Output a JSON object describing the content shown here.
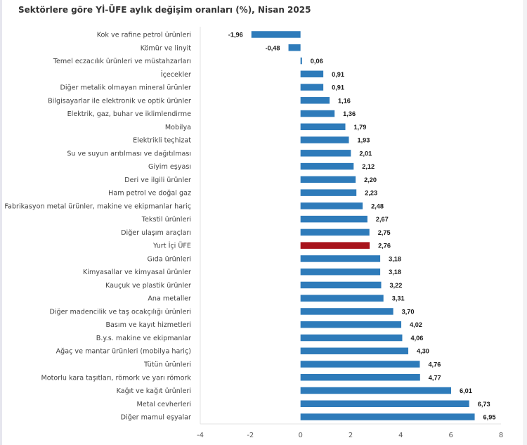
{
  "chart_data": {
    "type": "bar",
    "orientation": "horizontal",
    "title": "Sektörlere göre Yİ-ÜFE aylık değişim oranları (%), Nisan 2025",
    "xlabel": "",
    "ylabel": "",
    "xlim": [
      -4,
      8
    ],
    "x_ticks": [
      "-4",
      "-2",
      "0",
      "2",
      "4",
      "6",
      "8"
    ],
    "x_tick_values": [
      -4,
      -2,
      0,
      2,
      4,
      6,
      8
    ],
    "grid": false,
    "legend": "none",
    "colors": {
      "default_bar": "#2e7bba",
      "highlight_bar": "#a8141c",
      "axis_line": "#e3e3e3"
    },
    "categories": [
      "Kok ve rafine petrol ürünleri",
      "Kömür ve linyit",
      "Temel eczacılık ürünleri ve müstahzarları",
      "İçecekler",
      "Diğer metalik olmayan mineral ürünler",
      "Bilgisayarlar ile elektronik ve optik ürünler",
      "Elektrik, gaz, buhar ve iklimlendirme",
      "Mobilya",
      "Elektrikli teçhizat",
      "Su ve suyun arıtılması ve dağıtılması",
      "Giyim eşyası",
      "Deri ve ilgili ürünler",
      "Ham petrol ve doğal gaz",
      "Fabrikasyon metal ürünler, makine ve ekipmanlar hariç",
      "Tekstil ürünleri",
      "Diğer ulaşım araçları",
      "Yurt İçi ÜFE",
      "Gıda ürünleri",
      "Kimyasallar ve kimyasal ürünler",
      "Kauçuk ve plastik ürünler",
      "Ana metaller",
      "Diğer madencilik ve taş ocakçılığı ürünleri",
      "Basım ve kayıt hizmetleri",
      "B.y.s. makine ve ekipmanlar",
      "Ağaç ve mantar ürünleri (mobilya hariç)",
      "Tütün ürünleri",
      "Motorlu kara taşıtları, römork ve yarı römork",
      "Kağıt ve kağıt ürünleri",
      "Metal cevherleri",
      "Diğer mamul eşyalar"
    ],
    "values": [
      -1.96,
      -0.48,
      0.06,
      0.91,
      0.91,
      1.16,
      1.36,
      1.79,
      1.93,
      2.01,
      2.12,
      2.2,
      2.23,
      2.48,
      2.67,
      2.75,
      2.76,
      3.18,
      3.18,
      3.22,
      3.31,
      3.7,
      4.02,
      4.06,
      4.3,
      4.76,
      4.77,
      6.01,
      6.73,
      6.95
    ],
    "value_labels": [
      "-1,96",
      "-0,48",
      "0,06",
      "0,91",
      "0,91",
      "1,16",
      "1,36",
      "1,79",
      "1,93",
      "2,01",
      "2,12",
      "2,20",
      "2,23",
      "2,48",
      "2,67",
      "2,75",
      "2,76",
      "3,18",
      "3,18",
      "3,22",
      "3,31",
      "3,70",
      "4,02",
      "4,06",
      "4,30",
      "4,76",
      "4,77",
      "6,01",
      "6,73",
      "6,95"
    ],
    "highlighted_category": "Yurt İçi ÜFE"
  }
}
